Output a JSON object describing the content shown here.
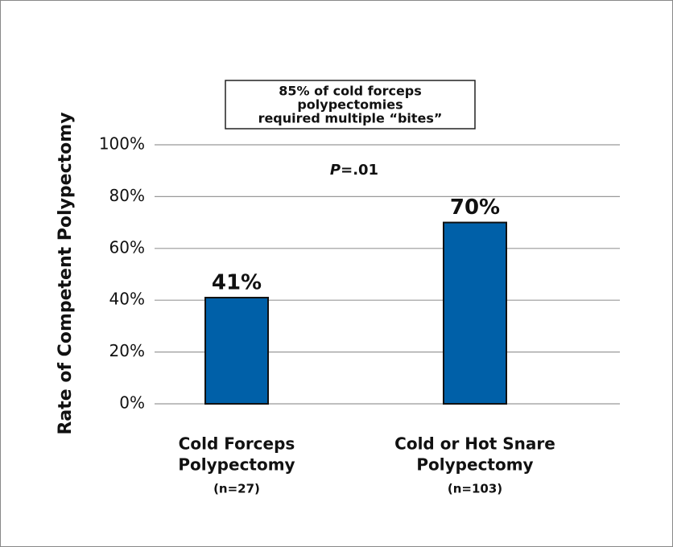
{
  "chart_data": {
    "type": "bar",
    "y_label": "Rate of Competent Polypectomy",
    "annotation_box": [
      "85% of cold forceps",
      "polypectomies",
      "required multiple “bites”"
    ],
    "p_value": {
      "symbol": "P",
      "text": "=.01"
    },
    "categories": [
      [
        "Cold Forceps",
        "Polypectomy"
      ],
      [
        "Cold or Hot Snare",
        "Polypectomy"
      ]
    ],
    "sample_sizes": [
      "(n=27)",
      "(n=103)"
    ],
    "values": [
      41,
      70
    ],
    "value_labels": [
      "41%",
      "70%"
    ],
    "color": "#0060a8",
    "ylim": [
      0,
      100
    ],
    "yticks": [
      {
        "value": 0,
        "label": "0%"
      },
      {
        "value": 20,
        "label": "20%"
      },
      {
        "value": 40,
        "label": "40%"
      },
      {
        "value": 60,
        "label": "60%"
      },
      {
        "value": 80,
        "label": "80%"
      },
      {
        "value": 100,
        "label": "100%"
      }
    ],
    "grid": true
  }
}
